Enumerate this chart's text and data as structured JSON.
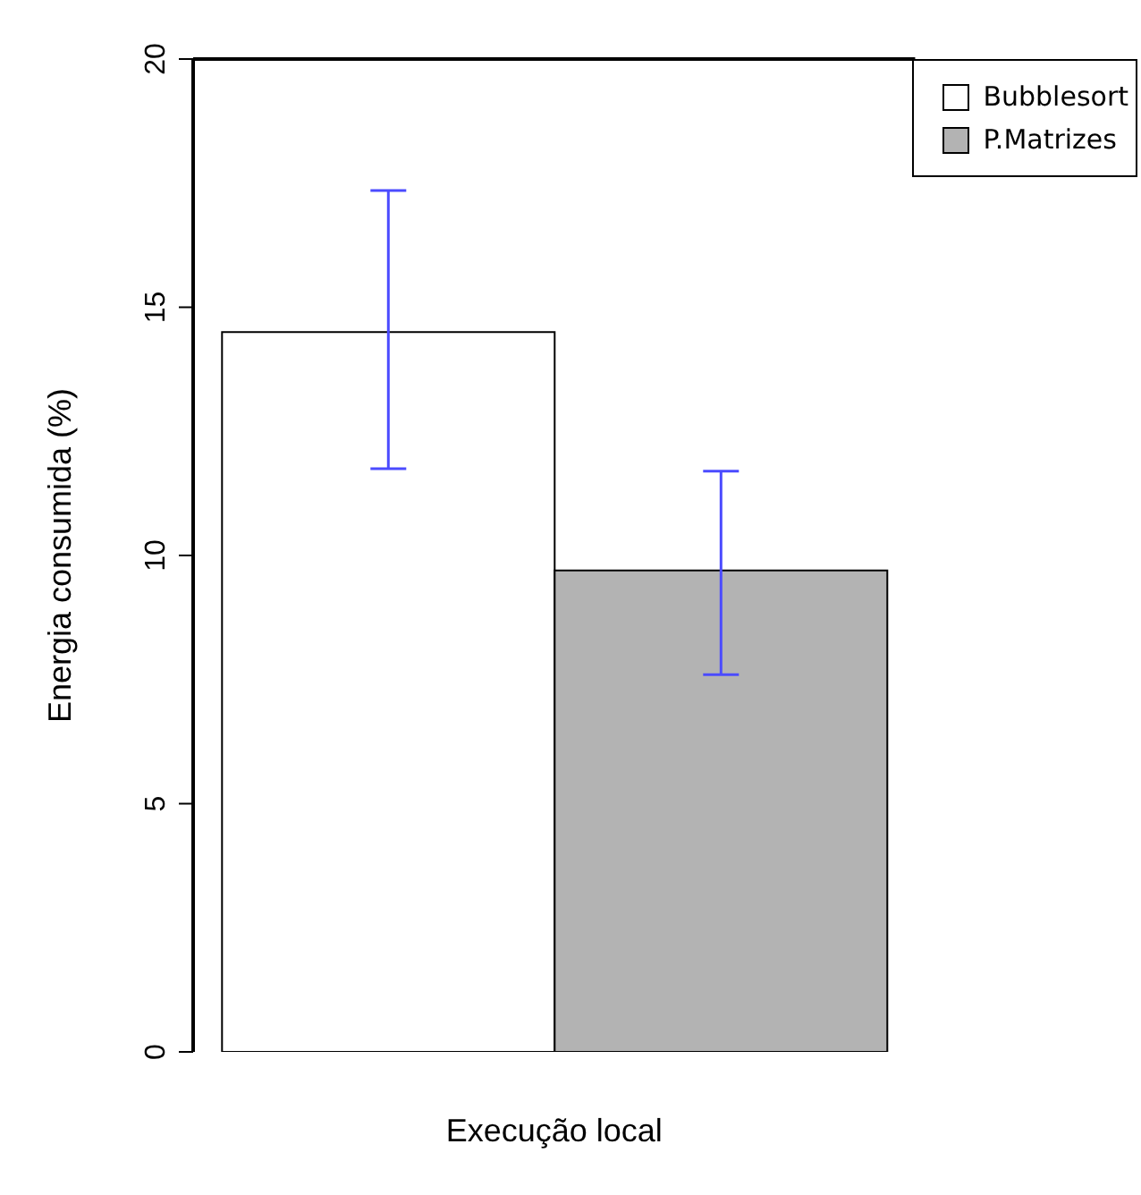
{
  "chart_data": {
    "type": "bar",
    "xlabel": "Execução local",
    "ylabel": "Energia consumida (%)",
    "categories": [
      null
    ],
    "series": [
      {
        "name": "Bubblesort",
        "color": "#ffffff",
        "values": [
          14.5
        ],
        "errors": [
          [
            11.75,
            17.35
          ]
        ]
      },
      {
        "name": "P.Matrizes",
        "color": "#b3b3b3",
        "values": [
          9.7
        ],
        "errors": [
          [
            7.6,
            11.7
          ]
        ]
      }
    ],
    "ylim": [
      0,
      20
    ],
    "yticks": [
      0,
      5,
      10,
      15,
      20
    ],
    "grid": false,
    "legend": "top right"
  }
}
